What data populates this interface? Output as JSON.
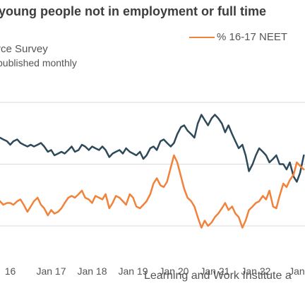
{
  "header": {
    "title": "young people not in employment or full time",
    "subtitle_line1": "rce Survey",
    "subtitle_line2": "published monthly"
  },
  "legend": {
    "label": "% 16-17 NEET"
  },
  "source": "Learning and Work Institute a",
  "colors": {
    "series_top": "#2e4a5a",
    "series_bottom": "#f2813a",
    "gridline": "#dadada"
  },
  "chart_data": {
    "type": "line",
    "x_tick_labels": [
      "16",
      "Jan 17",
      "Jan 18",
      "Jan 19",
      "Jan 20",
      "Jan 21",
      "Jan 22",
      "Jan"
    ],
    "x_ticks": [
      2016.0,
      2017.0,
      2018.0,
      2019.0,
      2020.0,
      2021.0,
      2022.0,
      2023.0
    ],
    "xlim": [
      2015.75,
      2023.2
    ],
    "grid": "horizontal",
    "legend_position": "top-right",
    "series": [
      {
        "name": "",
        "color": "#2e4a5a",
        "x": [
          2015.75,
          2015.83,
          2015.92,
          2016.0,
          2016.08,
          2016.17,
          2016.25,
          2016.33,
          2016.42,
          2016.5,
          2016.58,
          2016.67,
          2016.75,
          2016.83,
          2016.92,
          2017.0,
          2017.08,
          2017.17,
          2017.25,
          2017.33,
          2017.42,
          2017.5,
          2017.58,
          2017.67,
          2017.75,
          2017.83,
          2017.92,
          2018.0,
          2018.08,
          2018.17,
          2018.25,
          2018.33,
          2018.42,
          2018.5,
          2018.58,
          2018.67,
          2018.75,
          2018.83,
          2018.92,
          2019.0,
          2019.08,
          2019.17,
          2019.25,
          2019.33,
          2019.42,
          2019.5,
          2019.58,
          2019.67,
          2019.75,
          2019.83,
          2019.92,
          2020.0,
          2020.08,
          2020.17,
          2020.25,
          2020.33,
          2020.42,
          2020.5,
          2020.58,
          2020.67,
          2020.75,
          2020.83,
          2020.92,
          2021.0,
          2021.08,
          2021.17,
          2021.25,
          2021.33,
          2021.42,
          2021.5,
          2021.58,
          2021.67,
          2021.75,
          2021.83,
          2021.92,
          2022.0,
          2022.08,
          2022.17,
          2022.25,
          2022.33,
          2022.42,
          2022.5,
          2022.58,
          2022.67,
          2022.75,
          2022.83,
          2022.92,
          2023.0,
          2023.08,
          2023.17
        ],
        "y": [
          6.0,
          5.9,
          5.8,
          5.6,
          5.8,
          5.9,
          5.7,
          5.6,
          5.5,
          5.6,
          5.5,
          5.6,
          5.7,
          5.5,
          5.2,
          5.3,
          5.0,
          5.1,
          5.2,
          5.1,
          5.3,
          5.5,
          5.2,
          5.3,
          5.6,
          5.5,
          5.3,
          5.5,
          5.4,
          5.3,
          5.5,
          5.3,
          4.9,
          5.1,
          5.2,
          5.3,
          5.1,
          5.4,
          5.2,
          5.1,
          5.0,
          5.2,
          4.8,
          5.0,
          5.4,
          5.5,
          5.3,
          5.8,
          5.9,
          5.7,
          5.5,
          5.7,
          6.2,
          6.6,
          6.7,
          6.4,
          6.2,
          6.0,
          6.8,
          7.3,
          7.0,
          6.7,
          7.1,
          7.3,
          7.1,
          6.8,
          6.3,
          6.7,
          6.2,
          5.8,
          5.4,
          5.6,
          5.0,
          4.1,
          4.5,
          5.0,
          5.4,
          5.2,
          5.0,
          4.6,
          4.8,
          5.0,
          4.5,
          4.5,
          4.2,
          4.6,
          3.8,
          3.5,
          4.0,
          5.0
        ]
      },
      {
        "name": "% 16-17 NEET",
        "color": "#f2813a",
        "x": [
          2015.75,
          2015.83,
          2015.92,
          2016.0,
          2016.08,
          2016.17,
          2016.25,
          2016.33,
          2016.42,
          2016.5,
          2016.58,
          2016.67,
          2016.75,
          2016.83,
          2016.92,
          2017.0,
          2017.08,
          2017.17,
          2017.25,
          2017.33,
          2017.42,
          2017.5,
          2017.58,
          2017.67,
          2017.75,
          2017.83,
          2017.92,
          2018.0,
          2018.08,
          2018.17,
          2018.25,
          2018.33,
          2018.42,
          2018.5,
          2018.58,
          2018.67,
          2018.75,
          2018.83,
          2018.92,
          2019.0,
          2019.08,
          2019.17,
          2019.25,
          2019.33,
          2019.42,
          2019.5,
          2019.58,
          2019.67,
          2019.75,
          2019.83,
          2019.92,
          2020.0,
          2020.08,
          2020.17,
          2020.25,
          2020.33,
          2020.42,
          2020.5,
          2020.58,
          2020.67,
          2020.75,
          2020.83,
          2020.92,
          2021.0,
          2021.08,
          2021.17,
          2021.25,
          2021.33,
          2021.42,
          2021.5,
          2021.58,
          2021.67,
          2021.75,
          2021.83,
          2021.92,
          2022.0,
          2022.08,
          2022.17,
          2022.25,
          2022.33,
          2022.42,
          2022.5,
          2022.58,
          2022.67,
          2022.75,
          2022.83,
          2022.92,
          2023.0,
          2023.08,
          2023.17
        ],
        "y": [
          2.4,
          2.2,
          2.3,
          2.3,
          2.2,
          2.4,
          2.5,
          2.2,
          1.8,
          2.1,
          2.4,
          2.6,
          2.2,
          2.0,
          1.6,
          1.9,
          1.7,
          1.8,
          2.0,
          2.3,
          2.6,
          2.7,
          2.6,
          2.8,
          3.0,
          2.6,
          2.5,
          2.3,
          2.7,
          2.6,
          2.5,
          2.8,
          2.0,
          2.3,
          2.7,
          2.6,
          2.4,
          2.2,
          2.8,
          2.6,
          2.1,
          2.0,
          2.2,
          2.4,
          2.8,
          3.4,
          3.7,
          3.3,
          3.2,
          3.5,
          4.3,
          5.0,
          4.6,
          3.8,
          3.1,
          2.6,
          2.4,
          2.1,
          1.5,
          0.9,
          1.3,
          1.0,
          1.2,
          1.5,
          1.7,
          2.0,
          2.3,
          1.9,
          2.1,
          1.7,
          1.5,
          0.9,
          1.3,
          1.9,
          2.1,
          2.3,
          2.4,
          2.7,
          2.5,
          3.0,
          2.1,
          2.0,
          2.7,
          3.4,
          3.2,
          3.6,
          3.9,
          4.6,
          4.4,
          4.2
        ]
      }
    ]
  }
}
